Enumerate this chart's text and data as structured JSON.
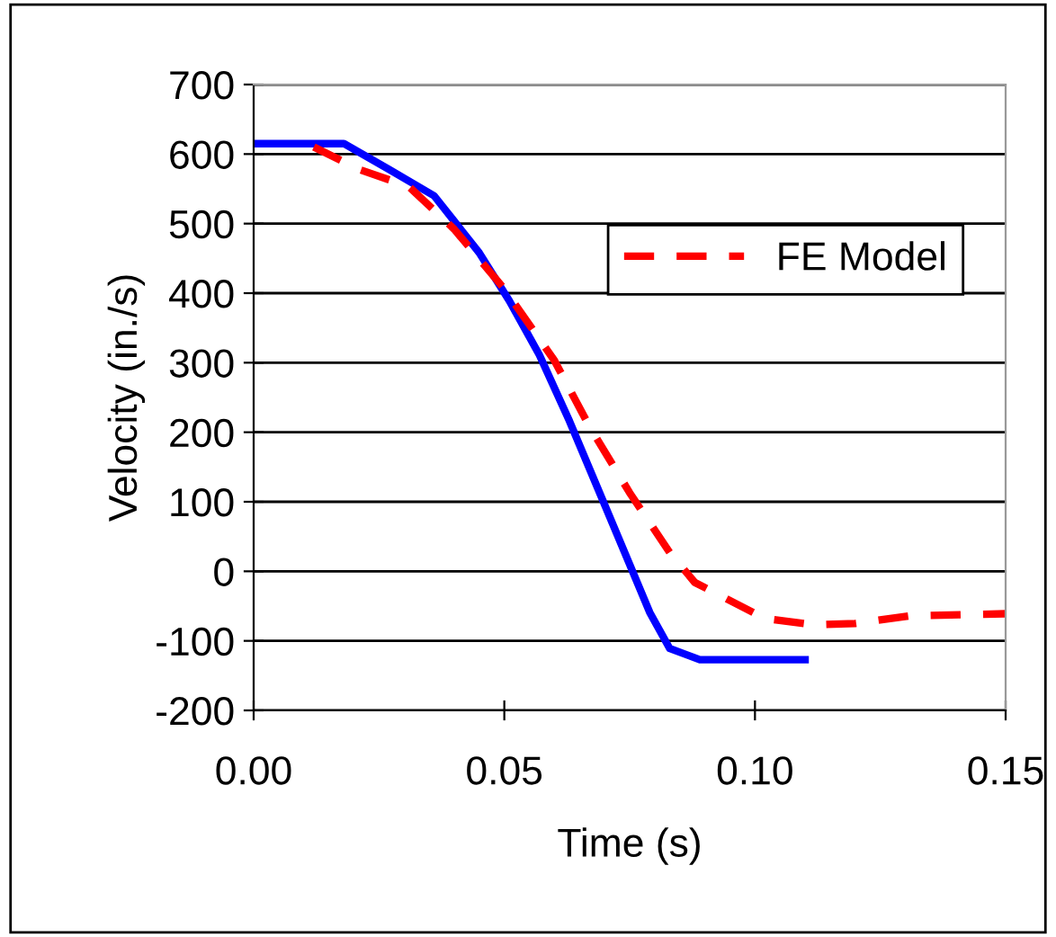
{
  "chart_data": {
    "type": "line",
    "xlabel": "Time (s)",
    "ylabel": "Velocity (in./s)",
    "xlim": [
      0,
      0.15
    ],
    "xticks": [
      {
        "value": 0,
        "label": "0.00"
      },
      {
        "value": 0.05,
        "label": "0.05"
      },
      {
        "value": 0.1,
        "label": "0.10"
      },
      {
        "value": 0.15,
        "label": "0.15"
      }
    ],
    "ylim": [
      -200,
      700
    ],
    "yticks": [
      -200,
      -100,
      0,
      100,
      200,
      300,
      400,
      500,
      600,
      700
    ],
    "grid": "y",
    "legend": "right",
    "series": [
      {
        "color": "#0000ff",
        "line_style": "solid",
        "x": [
          0,
          0.018,
          0.027,
          0.036,
          0.045,
          0.051,
          0.057,
          0.063,
          0.069,
          0.075,
          0.079,
          0.083,
          0.089,
          0.11
        ],
        "values": [
          615,
          615,
          578,
          540,
          458,
          389,
          311,
          216,
          113,
          10,
          -59,
          -111,
          -127,
          -127
        ]
      },
      {
        "name": "FE Model",
        "color": "#ff0000",
        "line_style": "dashed",
        "x": [
          0.012,
          0.021,
          0.031,
          0.04,
          0.05,
          0.06,
          0.067,
          0.075,
          0.083,
          0.088,
          0.102,
          0.112,
          0.12,
          0.131,
          0.15
        ],
        "values": [
          610,
          578,
          553,
          492,
          406,
          303,
          208,
          113,
          27,
          -16,
          -68,
          -77,
          -75,
          -64,
          -61
        ]
      }
    ]
  }
}
